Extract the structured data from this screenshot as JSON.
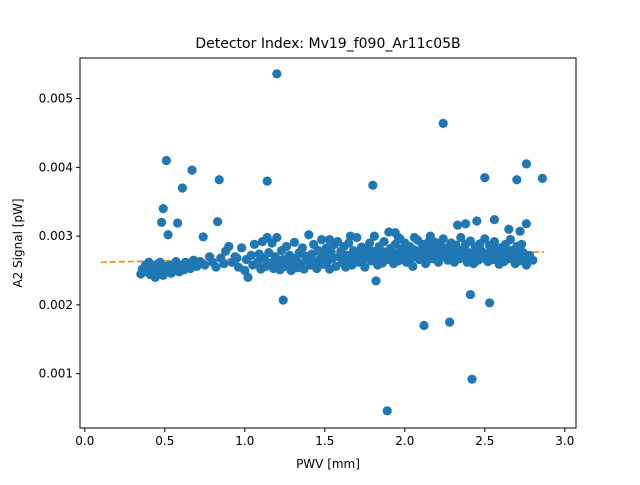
{
  "chart_data": {
    "type": "scatter",
    "title": "Detector Index: Mv19_f090_Ar11c05B",
    "xlabel": "PWV [mm]",
    "ylabel": "A2 Signal [pW]",
    "xlim": [
      -0.03,
      3.07
    ],
    "ylim": [
      0.00021,
      0.00559
    ],
    "x_ticks": [
      {
        "value": 0.0,
        "label": "0.0"
      },
      {
        "value": 0.5,
        "label": "0.5"
      },
      {
        "value": 1.0,
        "label": "1.0"
      },
      {
        "value": 1.5,
        "label": "1.5"
      },
      {
        "value": 2.0,
        "label": "2.0"
      },
      {
        "value": 2.5,
        "label": "2.5"
      },
      {
        "value": 3.0,
        "label": "3.0"
      }
    ],
    "y_ticks": [
      {
        "value": 0.001,
        "label": "0.001"
      },
      {
        "value": 0.002,
        "label": "0.002"
      },
      {
        "value": 0.003,
        "label": "0.003"
      },
      {
        "value": 0.004,
        "label": "0.004"
      },
      {
        "value": 0.005,
        "label": "0.005"
      }
    ],
    "grid": false,
    "series": [
      {
        "name": "measurements",
        "kind": "scatter",
        "color": "#1f77b4",
        "points": [
          [
            0.35,
            0.00245
          ],
          [
            0.36,
            0.00252
          ],
          [
            0.38,
            0.00258
          ],
          [
            0.39,
            0.00248
          ],
          [
            0.4,
            0.00262
          ],
          [
            0.41,
            0.00244
          ],
          [
            0.42,
            0.00255
          ],
          [
            0.43,
            0.0025
          ],
          [
            0.45,
            0.00259
          ],
          [
            0.46,
            0.00247
          ],
          [
            0.47,
            0.00262
          ],
          [
            0.48,
            0.00251
          ],
          [
            0.49,
            0.00243
          ],
          [
            0.5,
            0.00256
          ],
          [
            0.52,
            0.00249
          ],
          [
            0.53,
            0.00258
          ],
          [
            0.54,
            0.00246
          ],
          [
            0.56,
            0.00252
          ],
          [
            0.57,
            0.00263
          ],
          [
            0.59,
            0.00248
          ],
          [
            0.6,
            0.00257
          ],
          [
            0.62,
            0.00251
          ],
          [
            0.64,
            0.00259
          ],
          [
            0.66,
            0.00253
          ],
          [
            0.68,
            0.00265
          ],
          [
            0.7,
            0.00256
          ],
          [
            0.72,
            0.00263
          ],
          [
            0.75,
            0.00258
          ],
          [
            0.78,
            0.0027
          ],
          [
            0.8,
            0.00262
          ],
          [
            0.82,
            0.00255
          ],
          [
            0.85,
            0.00268
          ],
          [
            0.87,
            0.0026
          ],
          [
            0.88,
            0.00278
          ],
          [
            0.9,
            0.00285
          ],
          [
            0.92,
            0.00262
          ],
          [
            0.94,
            0.0027
          ],
          [
            0.96,
            0.00255
          ],
          [
            0.98,
            0.00283
          ],
          [
            1.0,
            0.0025
          ],
          [
            1.01,
            0.00266
          ],
          [
            1.02,
            0.0024
          ],
          [
            1.04,
            0.00272
          ],
          [
            1.05,
            0.00258
          ],
          [
            1.06,
            0.00288
          ],
          [
            1.08,
            0.00262
          ],
          [
            1.09,
            0.00274
          ],
          [
            1.1,
            0.00252
          ],
          [
            1.11,
            0.00292
          ],
          [
            1.12,
            0.00268
          ],
          [
            1.13,
            0.00256
          ],
          [
            1.14,
            0.00298
          ],
          [
            1.15,
            0.00276
          ],
          [
            1.16,
            0.00261
          ],
          [
            1.17,
            0.0029
          ],
          [
            1.18,
            0.00253
          ],
          [
            1.19,
            0.0027
          ],
          [
            1.2,
            0.00298
          ],
          [
            1.21,
            0.00262
          ],
          [
            1.22,
            0.00251
          ],
          [
            1.23,
            0.00279
          ],
          [
            1.24,
            0.00266
          ],
          [
            1.25,
            0.00256
          ],
          [
            1.26,
            0.00285
          ],
          [
            1.27,
            0.00259
          ],
          [
            1.28,
            0.00272
          ],
          [
            1.29,
            0.0025
          ],
          [
            1.3,
            0.00263
          ],
          [
            1.31,
            0.00291
          ],
          [
            1.32,
            0.00268
          ],
          [
            1.33,
            0.00254
          ],
          [
            1.34,
            0.00276
          ],
          [
            1.35,
            0.0026
          ],
          [
            1.36,
            0.00283
          ],
          [
            1.37,
            0.00252
          ],
          [
            1.38,
            0.00271
          ],
          [
            1.39,
            0.00265
          ],
          [
            1.4,
            0.00302
          ],
          [
            1.41,
            0.00258
          ],
          [
            1.42,
            0.00274
          ],
          [
            1.43,
            0.00288
          ],
          [
            1.44,
            0.00262
          ],
          [
            1.45,
            0.00253
          ],
          [
            1.46,
            0.00279
          ],
          [
            1.47,
            0.00267
          ],
          [
            1.48,
            0.00295
          ],
          [
            1.49,
            0.00259
          ],
          [
            1.5,
            0.00272
          ],
          [
            1.51,
            0.00283
          ],
          [
            1.52,
            0.00264
          ],
          [
            1.53,
            0.00252
          ],
          [
            1.54,
            0.00277
          ],
          [
            1.55,
            0.00268
          ],
          [
            1.56,
            0.00288
          ],
          [
            1.57,
            0.00256
          ],
          [
            1.58,
            0.00292
          ],
          [
            1.59,
            0.0027
          ],
          [
            1.6,
            0.00278
          ],
          [
            1.61,
            0.00262
          ],
          [
            1.62,
            0.00285
          ],
          [
            1.63,
            0.00255
          ],
          [
            1.64,
            0.00272
          ],
          [
            1.65,
            0.0029
          ],
          [
            1.66,
            0.00266
          ],
          [
            1.67,
            0.00258
          ],
          [
            1.68,
            0.00279
          ],
          [
            1.69,
            0.0027
          ],
          [
            1.7,
            0.00298
          ],
          [
            1.71,
            0.00262
          ],
          [
            1.72,
            0.00276
          ],
          [
            1.73,
            0.00284
          ],
          [
            1.74,
            0.00266
          ],
          [
            1.75,
            0.00255
          ],
          [
            1.76,
            0.00281
          ],
          [
            1.77,
            0.00272
          ],
          [
            1.78,
            0.0029
          ],
          [
            1.79,
            0.00264
          ],
          [
            1.8,
            0.00278
          ],
          [
            1.81,
            0.003
          ],
          [
            1.82,
            0.00268
          ],
          [
            1.83,
            0.00258
          ],
          [
            1.84,
            0.00285
          ],
          [
            1.85,
            0.00274
          ],
          [
            1.86,
            0.00261
          ],
          [
            1.87,
            0.00292
          ],
          [
            1.88,
            0.00277
          ],
          [
            1.89,
            0.00266
          ],
          [
            1.9,
            0.00306
          ],
          [
            1.91,
            0.00282
          ],
          [
            1.92,
            0.0027
          ],
          [
            1.93,
            0.0026
          ],
          [
            1.94,
            0.00288
          ],
          [
            1.95,
            0.00275
          ],
          [
            1.96,
            0.00264
          ],
          [
            1.97,
            0.00296
          ],
          [
            1.98,
            0.00281
          ],
          [
            1.99,
            0.0027
          ],
          [
            2.0,
            0.0029
          ],
          [
            2.01,
            0.00262
          ],
          [
            2.02,
            0.00277
          ],
          [
            2.03,
            0.00285
          ],
          [
            2.04,
            0.00268
          ],
          [
            2.05,
            0.00256
          ],
          [
            2.06,
            0.0028
          ],
          [
            2.07,
            0.00272
          ],
          [
            2.08,
            0.00294
          ],
          [
            2.09,
            0.00266
          ],
          [
            2.1,
            0.00279
          ],
          [
            2.11,
            0.00288
          ],
          [
            2.12,
            0.0027
          ],
          [
            2.13,
            0.0026
          ],
          [
            2.14,
            0.00284
          ],
          [
            2.15,
            0.00275
          ],
          [
            2.16,
            0.003
          ],
          [
            2.17,
            0.00267
          ],
          [
            2.18,
            0.00281
          ],
          [
            2.19,
            0.00291
          ],
          [
            2.2,
            0.00272
          ],
          [
            2.21,
            0.00262
          ],
          [
            2.22,
            0.00286
          ],
          [
            2.23,
            0.00276
          ],
          [
            2.24,
            0.00296
          ],
          [
            2.25,
            0.0027
          ],
          [
            2.26,
            0.00283
          ],
          [
            2.27,
            0.00265
          ],
          [
            2.28,
            0.00278
          ],
          [
            2.29,
            0.0029
          ],
          [
            2.3,
            0.00272
          ],
          [
            2.31,
            0.00262
          ],
          [
            2.32,
            0.00287
          ],
          [
            2.33,
            0.00276
          ],
          [
            2.34,
            0.00267
          ],
          [
            2.35,
            0.00298
          ],
          [
            2.36,
            0.0028
          ],
          [
            2.37,
            0.0027
          ],
          [
            2.38,
            0.00288
          ],
          [
            2.39,
            0.00262
          ],
          [
            2.4,
            0.00276
          ],
          [
            2.41,
            0.00293
          ],
          [
            2.42,
            0.0027
          ],
          [
            2.43,
            0.0026
          ],
          [
            2.44,
            0.00284
          ],
          [
            2.45,
            0.00275
          ],
          [
            2.46,
            0.00265
          ],
          [
            2.47,
            0.00289
          ],
          [
            2.48,
            0.00278
          ],
          [
            2.49,
            0.00268
          ],
          [
            2.5,
            0.00296
          ],
          [
            2.51,
            0.00274
          ],
          [
            2.52,
            0.00263
          ],
          [
            2.53,
            0.00286
          ],
          [
            2.54,
            0.00276
          ],
          [
            2.55,
            0.00266
          ],
          [
            2.56,
            0.00292
          ],
          [
            2.57,
            0.0028
          ],
          [
            2.58,
            0.00268
          ],
          [
            2.59,
            0.00259
          ],
          [
            2.6,
            0.00283
          ],
          [
            2.61,
            0.00273
          ],
          [
            2.62,
            0.00263
          ],
          [
            2.63,
            0.00288
          ],
          [
            2.64,
            0.00276
          ],
          [
            2.65,
            0.00267
          ],
          [
            2.66,
            0.00295
          ],
          [
            2.67,
            0.00279
          ],
          [
            2.68,
            0.0027
          ],
          [
            2.69,
            0.0026
          ],
          [
            2.7,
            0.00285
          ],
          [
            2.71,
            0.00273
          ],
          [
            2.72,
            0.00264
          ],
          [
            2.73,
            0.00288
          ],
          [
            2.74,
            0.00276
          ],
          [
            2.75,
            0.00268
          ],
          [
            2.76,
            0.00258
          ],
          [
            2.78,
            0.00272
          ],
          [
            2.8,
            0.00265
          ],
          [
            0.51,
            0.0041
          ],
          [
            0.61,
            0.0037
          ],
          [
            0.67,
            0.00396
          ],
          [
            0.84,
            0.00382
          ],
          [
            0.48,
            0.0032
          ],
          [
            0.49,
            0.0034
          ],
          [
            0.52,
            0.00302
          ],
          [
            0.58,
            0.00319
          ],
          [
            0.74,
            0.00299
          ],
          [
            0.83,
            0.00321
          ],
          [
            1.2,
            0.00536
          ],
          [
            1.14,
            0.0038
          ],
          [
            1.24,
            0.00207
          ],
          [
            1.8,
            0.00374
          ],
          [
            1.82,
            0.00235
          ],
          [
            1.89,
            0.00046
          ],
          [
            2.12,
            0.0017
          ],
          [
            2.24,
            0.00464
          ],
          [
            2.28,
            0.00175
          ],
          [
            2.41,
            0.00215
          ],
          [
            2.42,
            0.00092
          ],
          [
            2.5,
            0.00385
          ],
          [
            2.53,
            0.00203
          ],
          [
            2.7,
            0.00382
          ],
          [
            2.76,
            0.00405
          ],
          [
            2.86,
            0.00384
          ],
          [
            2.76,
            0.00318
          ],
          [
            2.33,
            0.00316
          ],
          [
            2.38,
            0.00318
          ],
          [
            2.45,
            0.00322
          ],
          [
            2.56,
            0.00324
          ],
          [
            2.65,
            0.0031
          ],
          [
            2.72,
            0.00307
          ],
          [
            1.53,
            0.00295
          ],
          [
            1.96,
            0.00298
          ],
          [
            2.06,
            0.00298
          ],
          [
            0.95,
            0.00268
          ],
          [
            0.44,
            0.0024
          ],
          [
            0.63,
            0.00262
          ],
          [
            1.66,
            0.003
          ],
          [
            1.94,
            0.00305
          ],
          [
            2.15,
            0.00292
          ]
        ]
      },
      {
        "name": "linear fit",
        "kind": "line",
        "style": "dashed",
        "color": "#ff7f0e",
        "points": [
          [
            0.1,
            0.00262
          ],
          [
            2.87,
            0.00277
          ]
        ]
      }
    ]
  }
}
